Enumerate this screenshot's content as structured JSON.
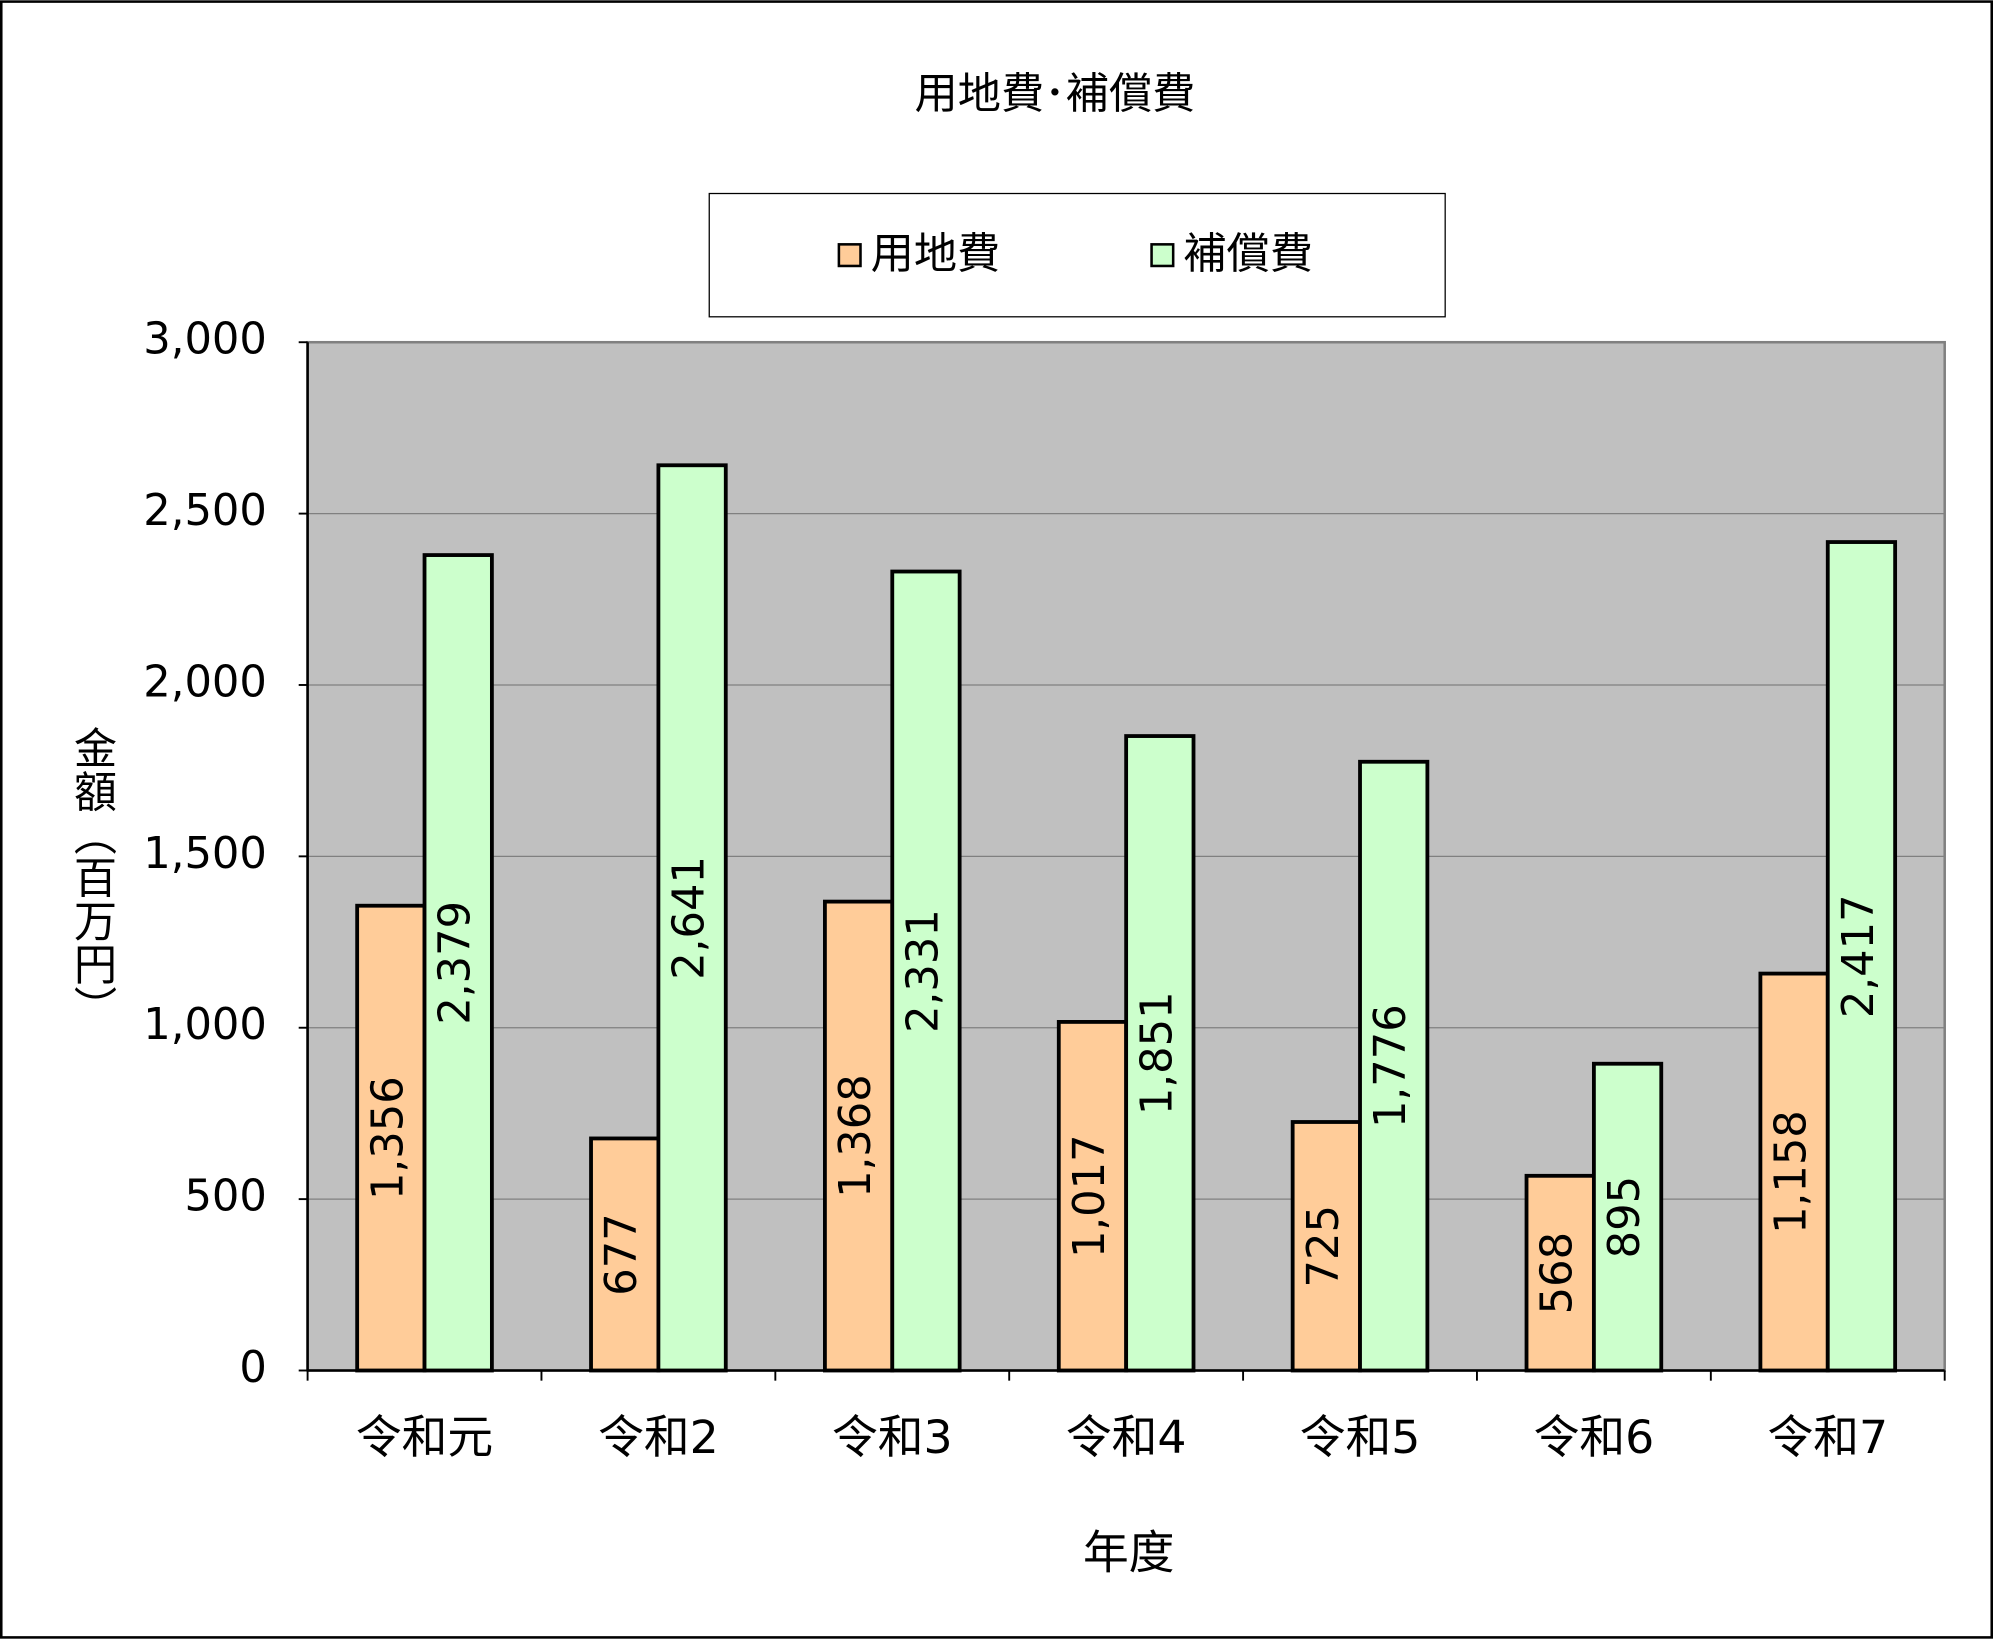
{
  "chart_data": {
    "type": "bar",
    "title": "用地費･補償費",
    "x_label": "年度",
    "y_label": "金額（百万円）",
    "categories": [
      "令和元",
      "令和2",
      "令和3",
      "令和4",
      "令和5",
      "令和6",
      "令和7"
    ],
    "series": [
      {
        "name": "用地費",
        "color": "#ffcc99",
        "values": [
          1356,
          677,
          1368,
          1017,
          725,
          568,
          1158
        ],
        "value_labels": [
          "1,356",
          "677",
          "1,368",
          "1,017",
          "725",
          "568",
          "1,158"
        ]
      },
      {
        "name": "補償費",
        "color": "#ccffcc",
        "values": [
          2379,
          2641,
          2331,
          1851,
          1776,
          895,
          2417
        ],
        "value_labels": [
          "2,379",
          "2,641",
          "2,331",
          "1,851",
          "1,776",
          "895",
          "2,417"
        ]
      }
    ],
    "ylim": [
      0,
      3000
    ],
    "yticks": [
      0,
      {
        "value": 500,
        "label": "500"
      },
      {
        "value": 1000,
        "label": "1,000"
      },
      {
        "value": 1500,
        "label": "1,500"
      },
      {
        "value": 2000,
        "label": "2,000"
      },
      {
        "value": 2500,
        "label": "2,500"
      },
      {
        "value": 3000,
        "label": "3,000"
      }
    ],
    "grid": true,
    "legend": "top",
    "plot_background": "#c0c0c0"
  }
}
